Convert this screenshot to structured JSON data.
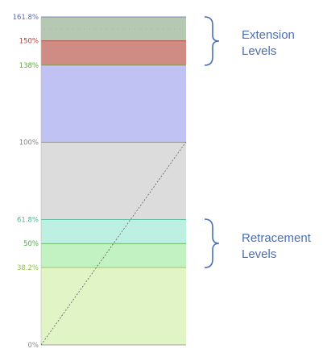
{
  "levels": [
    {
      "label": "161.8%",
      "value": 161.8,
      "label_color": "#5b6aa8"
    },
    {
      "label": "150%",
      "value": 150,
      "label_color": "#b3403a"
    },
    {
      "label": "138%",
      "value": 138,
      "label_color": "#5ea83a"
    },
    {
      "label": "100%",
      "value": 100,
      "label_color": "#888888"
    },
    {
      "label": "61.8%",
      "value": 61.8,
      "label_color": "#4db89a"
    },
    {
      "label": "50%",
      "value": 50,
      "label_color": "#4fa84a"
    },
    {
      "label": "38.2%",
      "value": 38.2,
      "label_color": "#8cbf3a"
    },
    {
      "label": "0%",
      "value": 0,
      "label_color": "#888888"
    }
  ],
  "bands": [
    {
      "from": 150,
      "to": 161.8,
      "color": "#b5c9b2"
    },
    {
      "from": 138,
      "to": 150,
      "color": "#cf8c84"
    },
    {
      "from": 100,
      "to": 138,
      "color": "#c0c2f4"
    },
    {
      "from": 61.8,
      "to": 100,
      "color": "#dcdcdc"
    },
    {
      "from": 50,
      "to": 61.8,
      "color": "#bdf0e0"
    },
    {
      "from": 38.2,
      "to": 50,
      "color": "#c2f1c2"
    },
    {
      "from": 0,
      "to": 38.2,
      "color": "#e0f4c6"
    }
  ],
  "annotations": {
    "extension": {
      "line1": "Extension",
      "line2": "Levels"
    },
    "retracement": {
      "line1": "Retracement",
      "line2": "Levels"
    },
    "color": "#4a6fb5"
  }
}
